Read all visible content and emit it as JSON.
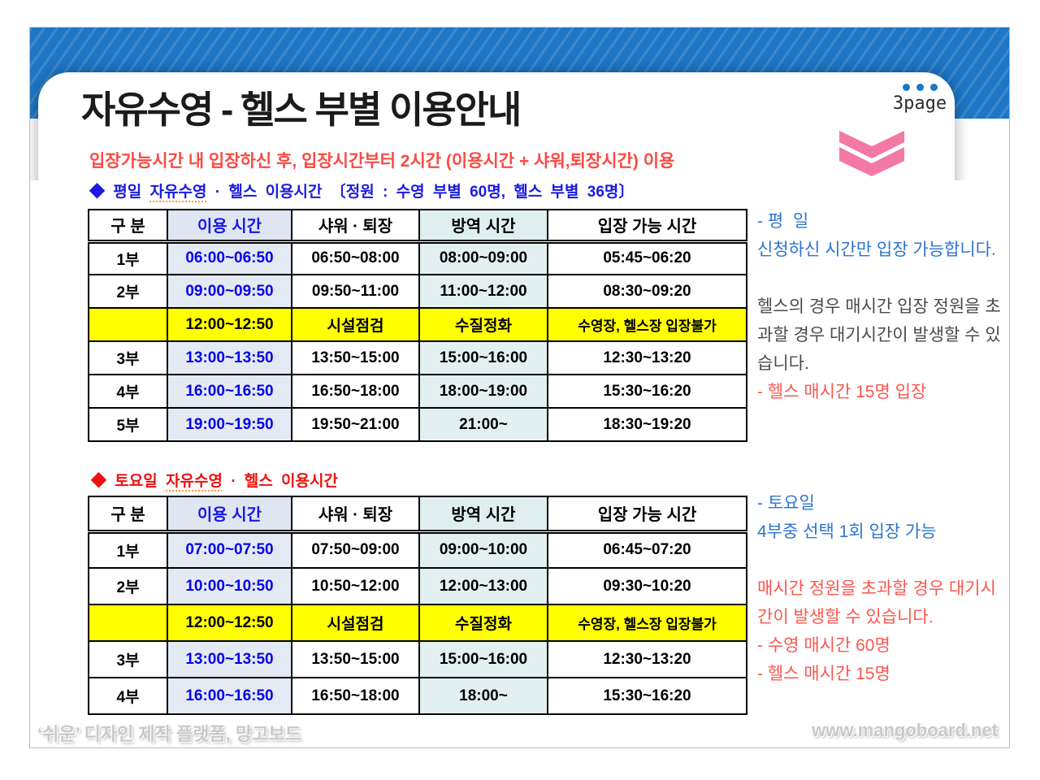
{
  "page": {
    "title": "자유수영 - 헬스 부별 이용안내",
    "page_label": "3page",
    "subtitle": "입장가능시간 내 입장하신 후, 입장시간부터 2시간 (이용시간 + 샤워,퇴장시간) 이용",
    "footer_left": "‘쉬운’ 디자인 제작 플랫폼, 망고보드",
    "footer_right": "www.mangoboard.net"
  },
  "colors": {
    "band_blue": "#1e77c6",
    "accent_pink": "#f478a6",
    "heading_blue": "#1a1ae0",
    "heading_red": "#ee1111",
    "time_blue": "#0202ee",
    "note_blue": "#2e74d2",
    "note_red": "#fa574e",
    "note_gray": "#4a4a4a",
    "maintenance_yellow": "#ffff00",
    "use_col_bg": "#e4eaf4",
    "disinfect_col_bg": "#e3f0f1"
  },
  "weekday": {
    "heading": {
      "prefix": "◆ 평일 ",
      "underlined": "자유수영",
      "suffix": " · 헬스 이용시간 〔정원 : 수영 부별 60명, 헬스 부별 36명〕"
    },
    "table": {
      "headers": [
        "구 분",
        "이용 시간",
        "샤워 · 퇴장",
        "방역 시간",
        "입장 가능 시간"
      ],
      "rows": [
        {
          "label": "1부",
          "use": "06:00~06:50",
          "shower": "06:50~08:00",
          "disinfect": "08:00~09:00",
          "entry": "05:45~06:20",
          "maintenance": false
        },
        {
          "label": "2부",
          "use": "09:00~09:50",
          "shower": "09:50~11:00",
          "disinfect": "11:00~12:00",
          "entry": "08:30~09:20",
          "maintenance": false
        },
        {
          "label": "",
          "use": "12:00~12:50",
          "shower": "시설점검",
          "disinfect": "수질정화",
          "entry": "수영장, 헬스장 입장불가",
          "maintenance": true
        },
        {
          "label": "3부",
          "use": "13:00~13:50",
          "shower": "13:50~15:00",
          "disinfect": "15:00~16:00",
          "entry": "12:30~13:20",
          "maintenance": false
        },
        {
          "label": "4부",
          "use": "16:00~16:50",
          "shower": "16:50~18:00",
          "disinfect": "18:00~19:00",
          "entry": "15:30~16:20",
          "maintenance": false
        },
        {
          "label": "5부",
          "use": "19:00~19:50",
          "shower": "19:50~21:00",
          "disinfect": "21:00~",
          "entry": "18:30~19:20",
          "maintenance": false
        }
      ]
    },
    "notes": [
      {
        "text": "- 평  일",
        "color": "blue"
      },
      {
        "text": "신청하신 시간만 입장 가능합니다.",
        "color": "blue"
      },
      {
        "text": "",
        "color": "blue"
      },
      {
        "text": "헬스의 경우 매시간 입장 정원을 초과할 경우 대기시간이 발생할 수 있습니다.",
        "color": "gray"
      },
      {
        "text": "- 헬스 매시간 15명 입장",
        "color": "red"
      }
    ]
  },
  "saturday": {
    "heading": {
      "prefix": "◆ 토요일 ",
      "underlined": "자유수영",
      "suffix": " · 헬스 이용시간"
    },
    "table": {
      "headers": [
        "구 분",
        "이용 시간",
        "샤워 · 퇴장",
        "방역 시간",
        "입장 가능 시간"
      ],
      "rows": [
        {
          "label": "1부",
          "use": "07:00~07:50",
          "shower": "07:50~09:00",
          "disinfect": "09:00~10:00",
          "entry": "06:45~07:20",
          "maintenance": false
        },
        {
          "label": "2부",
          "use": "10:00~10:50",
          "shower": "10:50~12:00",
          "disinfect": "12:00~13:00",
          "entry": "09:30~10:20",
          "maintenance": false
        },
        {
          "label": "",
          "use": "12:00~12:50",
          "shower": "시설점검",
          "disinfect": "수질정화",
          "entry": "수영장, 헬스장 입장불가",
          "maintenance": true
        },
        {
          "label": "3부",
          "use": "13:00~13:50",
          "shower": "13:50~15:00",
          "disinfect": "15:00~16:00",
          "entry": "12:30~13:20",
          "maintenance": false
        },
        {
          "label": "4부",
          "use": "16:00~16:50",
          "shower": "16:50~18:00",
          "disinfect": "18:00~",
          "entry": "15:30~16:20",
          "maintenance": false
        }
      ]
    },
    "notes": [
      {
        "text": "- 토요일",
        "color": "blue"
      },
      {
        "text": "4부중 선택 1회 입장 가능",
        "color": "blue"
      },
      {
        "text": "",
        "color": "blue"
      },
      {
        "text": "매시간 정원을 초과할 경우 대기시간이 발생할 수 있습니다.",
        "color": "red"
      },
      {
        "text": "- 수영 매시간 60명",
        "color": "red"
      },
      {
        "text": "- 헬스 매시간 15명",
        "color": "red"
      }
    ]
  }
}
